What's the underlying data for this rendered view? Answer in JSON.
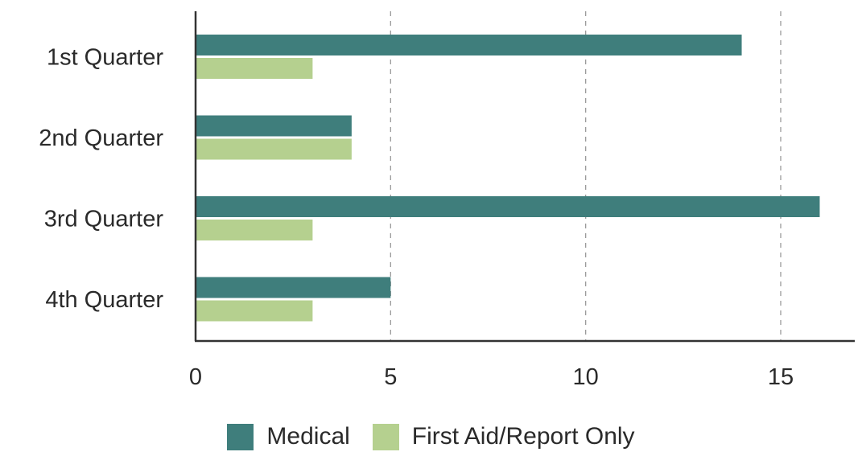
{
  "chart_data": {
    "type": "bar",
    "orientation": "horizontal",
    "categories": [
      "1st Quarter",
      "2nd Quarter",
      "3rd Quarter",
      "4th Quarter"
    ],
    "series": [
      {
        "name": "Medical",
        "values": [
          14,
          4,
          16,
          5
        ],
        "color": "#3f7e7c"
      },
      {
        "name": "First Aid/Report Only",
        "values": [
          3,
          4,
          3,
          3
        ],
        "color": "#b5d08f"
      }
    ],
    "x_ticks": [
      "0",
      "5",
      "10",
      "15"
    ],
    "xlim": [
      0,
      17
    ],
    "grid": "vertical dashed",
    "legend_position": "bottom",
    "title": "",
    "xlabel": "",
    "ylabel": ""
  }
}
